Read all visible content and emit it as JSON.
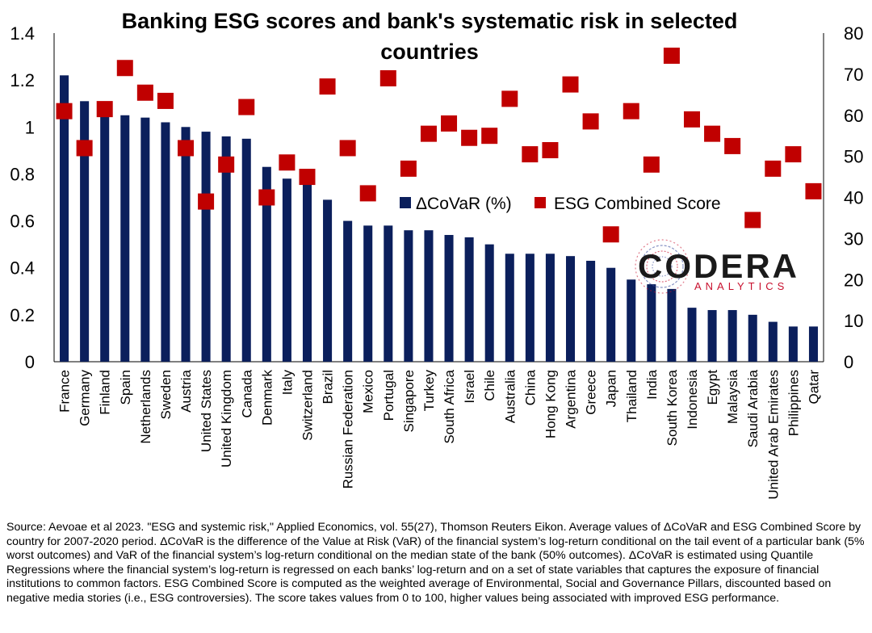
{
  "chart_data": {
    "type": "bar",
    "title": "Banking ESG scores and bank's systematic risk in selected countries",
    "title_lines": [
      "Banking ESG scores and bank's systematic risk in selected",
      "countries"
    ],
    "categories": [
      "France",
      "Germany",
      "Finland",
      "Spain",
      "Netherlands",
      "Sweden",
      "Austria",
      "United States",
      "United Kingdom",
      "Canada",
      "Denmark",
      "Italy",
      "Switzerland",
      "Brazil",
      "Russian Federation",
      "Mexico",
      "Portugal",
      "Singapore",
      "Turkey",
      "South Africa",
      "Israel",
      "Chile",
      "Australia",
      "China",
      "Hong Kong",
      "Argentina",
      "Greece",
      "Japan",
      "Thailand",
      "India",
      "South Korea",
      "Indonesia",
      "Egypt",
      "Malaysia",
      "Saudi Arabia",
      "United Arab Emirates",
      "Philippines",
      "Qatar"
    ],
    "series": [
      {
        "name": "ΔCoVaR (%)",
        "type": "bar",
        "axis": "left",
        "color": "#0b1f5c",
        "values": [
          1.22,
          1.11,
          1.08,
          1.05,
          1.04,
          1.02,
          1.0,
          0.98,
          0.96,
          0.95,
          0.83,
          0.78,
          0.76,
          0.69,
          0.6,
          0.58,
          0.58,
          0.56,
          0.56,
          0.54,
          0.53,
          0.5,
          0.46,
          0.46,
          0.46,
          0.45,
          0.43,
          0.4,
          0.35,
          0.33,
          0.31,
          0.23,
          0.22,
          0.22,
          0.2,
          0.17,
          0.15,
          0.15
        ]
      },
      {
        "name": "ESG Combined Score",
        "type": "scatter",
        "axis": "right",
        "color": "#c00000",
        "values": [
          61,
          52,
          61.5,
          71.5,
          65.5,
          63.5,
          52,
          39,
          48,
          62,
          40,
          48.5,
          45,
          67,
          52,
          41,
          69,
          47,
          55.5,
          58,
          54.5,
          55,
          64,
          50.5,
          51.5,
          67.5,
          58.5,
          31,
          61,
          48,
          74.5,
          59,
          55.5,
          52.5,
          34.5,
          47,
          50.5,
          41.5
        ]
      }
    ],
    "y_left": {
      "ylim": [
        0,
        1.4
      ],
      "ticks": [
        "0",
        "0.2",
        "0.4",
        "0.6",
        "0.8",
        "1",
        "1.2",
        "1.4"
      ]
    },
    "y_right": {
      "ylim": [
        0,
        80
      ],
      "ticks": [
        "0",
        "10",
        "20",
        "30",
        "40",
        "50",
        "60",
        "70",
        "80"
      ]
    },
    "legend": {
      "placement": "center-right",
      "items": [
        "ΔCoVaR (%)",
        "ESG Combined Score"
      ]
    },
    "grid": false
  },
  "logo": {
    "word": "CODERA",
    "sub": "ANALYTICS"
  },
  "source_text": "Source: Aevoae et al 2023. \"ESG and systemic risk,\" Applied Economics, vol. 55(27), Thomson Reuters Eikon. Average values of ΔCoVaR and ESG Combined Score by country for 2007-2020 period. ΔCoVaR is the difference of the Value at Risk (VaR) of the financial system’s log-return conditional on the tail event of a particular bank (5% worst outcomes) and  VaR of the financial system’s log-return conditional on the median state of the bank (50% outcomes). ΔCoVaR is estimated using  Quantile Regressions where the financial system’s log-return is regressed on each banks’ log-return and on a set of state variables that captures the exposure of financial institutions to common factors. ESG Combined Score is computed as the weighted average of Environmental, Social and Governance Pillars, discounted based on negative media stories (i.e., ESG controversies). The score takes values from 0 to 100, higher values being associated with improved ESG performance."
}
